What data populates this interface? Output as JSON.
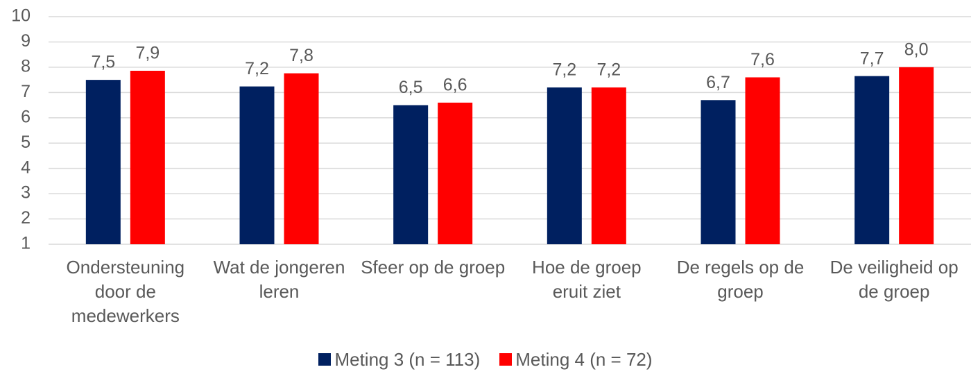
{
  "chart_data": {
    "type": "bar",
    "categories": [
      "Ondersteuning door de medewerkers",
      "Wat de jongeren leren",
      "Sfeer op de groep",
      "Hoe de groep eruit ziet",
      "De regels op de groep",
      "De veiligheid op de groep"
    ],
    "series": [
      {
        "name": "Meting 3 (n = 113)",
        "color": "#002060",
        "values": [
          7.5,
          7.24,
          6.5,
          7.2,
          6.7,
          7.65
        ],
        "value_labels": [
          "7,5",
          "7,2",
          "6,5",
          "7,2",
          "6,7",
          "7,7"
        ]
      },
      {
        "name": "Meting 4 (n = 72)",
        "color": "#ff0000",
        "values": [
          7.86,
          7.76,
          6.6,
          7.2,
          7.6,
          8.0
        ],
        "value_labels": [
          "7,9",
          "7,8",
          "6,6",
          "7,2",
          "7,6",
          "8,0"
        ]
      }
    ],
    "ylim": [
      1,
      10
    ],
    "yticks": [
      1,
      2,
      3,
      4,
      5,
      6,
      7,
      8,
      9,
      10
    ],
    "grid": true
  }
}
